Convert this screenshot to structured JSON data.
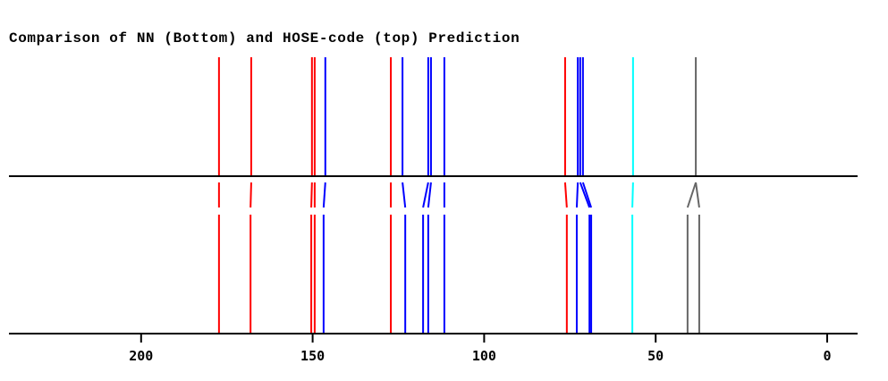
{
  "chart_data": {
    "type": "stick-spectrum-comparison",
    "title": "Comparison of NN (Bottom) and HOSE-code (top) Prediction",
    "xlabel": "",
    "ylabel": "",
    "xlim": [
      238,
      -9
    ],
    "x_reversed": true,
    "xticks": [
      200,
      150,
      100,
      50,
      0
    ],
    "grid": false,
    "legend": null,
    "colors": {
      "red": "#ff0000",
      "blue": "#0000ff",
      "cyan": "#00ffff",
      "gray": "#666666",
      "axis": "#000000"
    },
    "series": [
      {
        "name": "HOSE-code (top)",
        "position": "top",
        "peaks": [
          {
            "ppm": 177.3,
            "color": "#ff0000"
          },
          {
            "ppm": 167.9,
            "color": "#ff0000"
          },
          {
            "ppm": 150.2,
            "color": "#ff0000"
          },
          {
            "ppm": 149.4,
            "color": "#ff0000"
          },
          {
            "ppm": 146.3,
            "color": "#0000ff"
          },
          {
            "ppm": 127.2,
            "color": "#ff0000"
          },
          {
            "ppm": 123.8,
            "color": "#0000ff"
          },
          {
            "ppm": 116.3,
            "color": "#0000ff"
          },
          {
            "ppm": 115.5,
            "color": "#0000ff"
          },
          {
            "ppm": 111.6,
            "color": "#0000ff"
          },
          {
            "ppm": 76.4,
            "color": "#ff0000"
          },
          {
            "ppm": 72.7,
            "color": "#0000ff"
          },
          {
            "ppm": 72.0,
            "color": "#0000ff"
          },
          {
            "ppm": 71.2,
            "color": "#0000ff"
          },
          {
            "ppm": 56.6,
            "color": "#00ffff"
          },
          {
            "ppm": 38.3,
            "color": "#666666"
          }
        ]
      },
      {
        "name": "NN (Bottom)",
        "position": "bottom",
        "peaks": [
          {
            "ppm": 177.3,
            "color": "#ff0000"
          },
          {
            "ppm": 168.1,
            "color": "#ff0000"
          },
          {
            "ppm": 150.4,
            "color": "#ff0000"
          },
          {
            "ppm": 149.4,
            "color": "#ff0000"
          },
          {
            "ppm": 146.8,
            "color": "#0000ff"
          },
          {
            "ppm": 127.2,
            "color": "#ff0000"
          },
          {
            "ppm": 123.0,
            "color": "#0000ff"
          },
          {
            "ppm": 117.8,
            "color": "#0000ff"
          },
          {
            "ppm": 116.3,
            "color": "#0000ff"
          },
          {
            "ppm": 111.6,
            "color": "#0000ff"
          },
          {
            "ppm": 75.9,
            "color": "#ff0000"
          },
          {
            "ppm": 73.0,
            "color": "#0000ff"
          },
          {
            "ppm": 69.3,
            "color": "#0000ff"
          },
          {
            "ppm": 68.8,
            "color": "#0000ff"
          },
          {
            "ppm": 56.8,
            "color": "#00ffff"
          },
          {
            "ppm": 40.7,
            "color": "#666666"
          },
          {
            "ppm": 37.3,
            "color": "#666666"
          }
        ]
      }
    ],
    "links": [
      [
        0,
        0
      ],
      [
        1,
        1
      ],
      [
        2,
        2
      ],
      [
        3,
        3
      ],
      [
        4,
        4
      ],
      [
        5,
        5
      ],
      [
        6,
        6
      ],
      [
        7,
        7
      ],
      [
        8,
        8
      ],
      [
        9,
        9
      ],
      [
        10,
        10
      ],
      [
        11,
        11
      ],
      [
        12,
        12
      ],
      [
        13,
        13
      ],
      [
        14,
        14
      ],
      [
        15,
        15
      ],
      [
        15,
        16
      ]
    ]
  }
}
